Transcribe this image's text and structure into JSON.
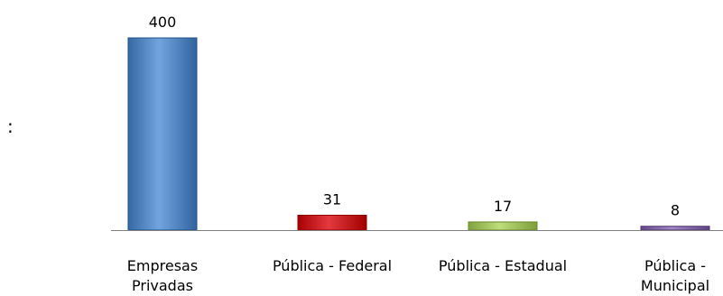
{
  "stray_text": ":",
  "chart_data": {
    "type": "bar",
    "title": "",
    "xlabel": "",
    "ylabel": "",
    "ylim": [
      0,
      400
    ],
    "categories": [
      [
        "Empresas",
        "Privadas"
      ],
      [
        "Pública - Federal"
      ],
      [
        "Pública - Estadual"
      ],
      [
        "Pública -",
        "Municipal"
      ]
    ],
    "values": [
      400,
      31,
      17,
      8
    ],
    "data_labels": [
      "400",
      "31",
      "17",
      "8"
    ],
    "colors": [
      "#4f81bd",
      "#c0161c",
      "#9bbb59",
      "#8064a2"
    ],
    "grid": false,
    "legend": "none"
  }
}
